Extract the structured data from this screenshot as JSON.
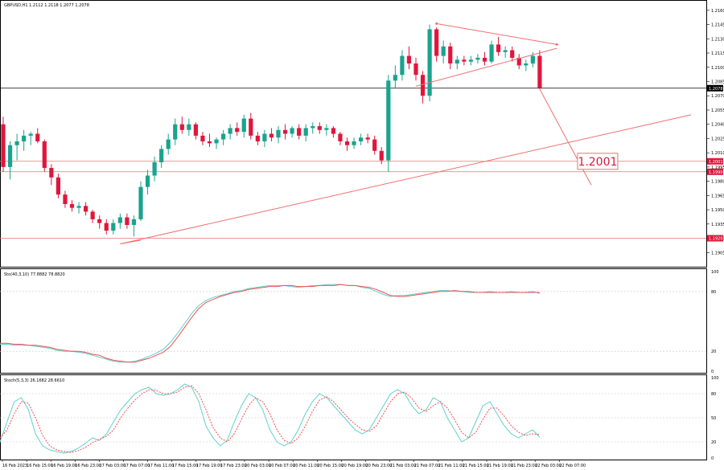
{
  "header": {
    "symbol_line": "GBPUSD,H1  1.2112 1.2118 1.2077 1.2078",
    "stoch1_line": "Sto(40,3,10) 77.8882 78.8820",
    "stoch2_line": "Stoch(5,3,3) 26.1682 28.6610"
  },
  "colors": {
    "bull": "#1aa38e",
    "bear": "#e0163c",
    "line_red": "#f07070",
    "stoch_main": "#60d0d0",
    "stoch_signal": "#f05050",
    "grid": "#c8c8c8",
    "border": "#000000"
  },
  "annotation": {
    "target_label": "1.2001"
  },
  "price_tags": {
    "current": "1.2078",
    "level_upper": "1.2001",
    "level_lower": "1.1990",
    "level_bottom": "1.1920"
  },
  "chart_data": [
    {
      "type": "candlestick",
      "title": "GBPUSD,H1",
      "ylim": [
        1.189,
        1.217
      ],
      "y_ticks": [
        "1.2160",
        "1.2145",
        "1.2130",
        "1.2115",
        "1.2100",
        "1.2085",
        "1.2070",
        "1.2055",
        "1.2040",
        "1.2025",
        "1.2010",
        "1.1995",
        "1.1980",
        "1.1965",
        "1.1950",
        "1.1935",
        "1.1920",
        "1.1905"
      ],
      "x_ticks": [
        "16 Feb 2023",
        "16 Feb 15:00",
        "16 Feb 19:00",
        "16 Feb 23:00",
        "17 Feb 03:00",
        "17 Feb 07:00",
        "17 Feb 11:00",
        "17 Feb 15:00",
        "17 Feb 19:00",
        "17 Feb 23:00",
        "20 Feb 03:00",
        "20 Feb 07:00",
        "20 Feb 11:00",
        "20 Feb 15:00",
        "20 Feb 19:00",
        "20 Feb 23:00",
        "21 Feb 03:00",
        "21 Feb 07:00",
        "21 Feb 11:00",
        "21 Feb 15:00",
        "21 Feb 19:00",
        "21 Feb 23:00",
        "22 Feb 03:00",
        "22 Feb 07:00"
      ],
      "candles": [
        [
          1.204,
          1.2048,
          1.199,
          1.1995
        ],
        [
          1.1995,
          1.2022,
          1.1982,
          1.2018
        ],
        [
          1.2018,
          1.203,
          1.2002,
          1.2022
        ],
        [
          1.2022,
          1.2034,
          1.2012,
          1.2028
        ],
        [
          1.2028,
          1.2032,
          1.2018,
          1.203
        ],
        [
          1.203,
          1.2036,
          1.202,
          1.2022
        ],
        [
          1.2022,
          1.2024,
          1.199,
          1.1994
        ],
        [
          1.1994,
          1.1998,
          1.1976,
          1.1984
        ],
        [
          1.1984,
          1.1988,
          1.1962,
          1.1966
        ],
        [
          1.1966,
          1.197,
          1.1952,
          1.1956
        ],
        [
          1.1956,
          1.196,
          1.1948,
          1.1952
        ],
        [
          1.1952,
          1.1958,
          1.1946,
          1.1954
        ],
        [
          1.1954,
          1.1958,
          1.1944,
          1.1948
        ],
        [
          1.1948,
          1.195,
          1.1936,
          1.194
        ],
        [
          1.194,
          1.1944,
          1.193,
          1.1936
        ],
        [
          1.1936,
          1.194,
          1.1924,
          1.1928
        ],
        [
          1.1928,
          1.194,
          1.1924,
          1.1936
        ],
        [
          1.1936,
          1.1946,
          1.193,
          1.1942
        ],
        [
          1.1942,
          1.1946,
          1.193,
          1.1934
        ],
        [
          1.1934,
          1.1944,
          1.1922,
          1.194
        ],
        [
          1.194,
          1.198,
          1.1938,
          1.1974
        ],
        [
          1.1974,
          1.1992,
          1.1966,
          1.1986
        ],
        [
          1.1986,
          1.2006,
          1.198,
          1.2
        ],
        [
          1.2,
          1.2018,
          1.1994,
          1.2014
        ],
        [
          1.2014,
          1.203,
          1.2008,
          1.2024
        ],
        [
          1.2024,
          1.2046,
          1.2018,
          1.204
        ],
        [
          1.204,
          1.2048,
          1.203,
          1.2034
        ],
        [
          1.2034,
          1.2046,
          1.2028,
          1.204
        ],
        [
          1.204,
          1.2042,
          1.2024,
          1.2028
        ],
        [
          1.2028,
          1.2032,
          1.2018,
          1.2022
        ],
        [
          1.2022,
          1.203,
          1.2016,
          1.202
        ],
        [
          1.202,
          1.2026,
          1.2014,
          1.2024
        ],
        [
          1.2024,
          1.2034,
          1.2018,
          1.203
        ],
        [
          1.203,
          1.204,
          1.2024,
          1.2036
        ],
        [
          1.2036,
          1.2042,
          1.2028,
          1.2032
        ],
        [
          1.2032,
          1.205,
          1.2026,
          1.2046
        ],
        [
          1.2046,
          1.2052,
          1.2024,
          1.2028
        ],
        [
          1.2028,
          1.2032,
          1.2018,
          1.2022
        ],
        [
          1.2022,
          1.2034,
          1.2016,
          1.203
        ],
        [
          1.203,
          1.2036,
          1.2022,
          1.2026
        ],
        [
          1.2026,
          1.2038,
          1.202,
          1.2034
        ],
        [
          1.2034,
          1.204,
          1.2024,
          1.203
        ],
        [
          1.203,
          1.2038,
          1.2026,
          1.2036
        ],
        [
          1.2036,
          1.204,
          1.2024,
          1.2028
        ],
        [
          1.2028,
          1.204,
          1.2022,
          1.2036
        ],
        [
          1.2036,
          1.2042,
          1.203,
          1.2038
        ],
        [
          1.2038,
          1.2042,
          1.203,
          1.2034
        ],
        [
          1.2034,
          1.204,
          1.2028,
          1.2036
        ],
        [
          1.2036,
          1.2038,
          1.2026,
          1.203
        ],
        [
          1.203,
          1.2032,
          1.2018,
          1.2022
        ],
        [
          1.2022,
          1.2026,
          1.2012,
          1.2018
        ],
        [
          1.2018,
          1.2026,
          1.2014,
          1.2022
        ],
        [
          1.2022,
          1.203,
          1.2018,
          1.2026
        ],
        [
          1.2026,
          1.203,
          1.202,
          1.2024
        ],
        [
          1.2024,
          1.2028,
          1.2008,
          1.2012
        ],
        [
          1.2012,
          1.2016,
          1.1998,
          1.2002
        ],
        [
          1.2002,
          1.2092,
          1.199,
          1.2086
        ],
        [
          1.2086,
          1.2102,
          1.2078,
          1.2092
        ],
        [
          1.2092,
          1.2118,
          1.2086,
          1.2112
        ],
        [
          1.2112,
          1.2122,
          1.2098,
          1.2104
        ],
        [
          1.2104,
          1.211,
          1.2086,
          1.2092
        ],
        [
          1.2092,
          1.2096,
          1.2062,
          1.207
        ],
        [
          1.207,
          1.2145,
          1.2064,
          1.214
        ],
        [
          1.214,
          1.2142,
          1.2106,
          1.2112
        ],
        [
          1.2112,
          1.2128,
          1.2104,
          1.2122
        ],
        [
          1.2122,
          1.2126,
          1.2098,
          1.2104
        ],
        [
          1.2104,
          1.2112,
          1.2098,
          1.2108
        ],
        [
          1.2108,
          1.2112,
          1.2102,
          1.2106
        ],
        [
          1.2106,
          1.2112,
          1.2102,
          1.2108
        ],
        [
          1.2108,
          1.2114,
          1.2104,
          1.211
        ],
        [
          1.211,
          1.2116,
          1.2102,
          1.2106
        ],
        [
          1.2106,
          1.2128,
          1.2104,
          1.2124
        ],
        [
          1.2124,
          1.2132,
          1.2112,
          1.2116
        ],
        [
          1.2116,
          1.2122,
          1.211,
          1.2118
        ],
        [
          1.2118,
          1.2122,
          1.2106,
          1.211
        ],
        [
          1.211,
          1.2114,
          1.2098,
          1.2102
        ],
        [
          1.2102,
          1.2108,
          1.2096,
          1.2104
        ],
        [
          1.2104,
          1.2116,
          1.21,
          1.2112
        ],
        [
          1.2112,
          1.2118,
          1.2077,
          1.2078
        ]
      ],
      "lines": [
        {
          "name": "current_price",
          "y": 1.2078,
          "color": "#000000"
        },
        {
          "name": "level_upper",
          "y": 1.2001,
          "color": "#f07070"
        },
        {
          "name": "level_lower",
          "y": 1.199,
          "color": "#f07070"
        },
        {
          "name": "level_bottom",
          "y": 1.192,
          "color": "#f07070"
        }
      ]
    },
    {
      "type": "line",
      "title": "Sto(40,3,10)",
      "ylim": [
        0,
        100
      ],
      "y_ticks": [
        "100",
        "80",
        "20",
        "0"
      ],
      "series": [
        {
          "values": [
            27,
            27,
            26,
            26,
            26,
            25,
            24,
            23,
            21,
            20,
            20,
            19,
            18,
            16,
            14,
            12,
            10,
            9,
            9,
            10,
            12,
            15,
            18,
            22,
            29,
            38,
            48,
            58,
            66,
            71,
            74,
            76,
            78,
            80,
            81,
            83,
            84,
            85,
            86,
            86,
            86,
            85,
            84,
            85,
            86,
            86,
            87,
            87,
            87,
            86,
            86,
            84,
            83,
            80,
            77,
            75,
            76,
            76,
            77,
            78,
            79,
            80,
            81,
            81,
            80,
            80,
            79,
            79,
            79,
            80,
            79,
            79,
            80,
            79,
            79,
            80,
            78
          ]
        },
        {
          "values": [
            28,
            28,
            27,
            27,
            26,
            26,
            25,
            24,
            22,
            21,
            20,
            20,
            19,
            17,
            16,
            13,
            11,
            10,
            9,
            9,
            11,
            13,
            16,
            19,
            25,
            34,
            44,
            54,
            63,
            69,
            72,
            75,
            77,
            79,
            80,
            82,
            83,
            84,
            85,
            85,
            86,
            86,
            85,
            85,
            85,
            86,
            86,
            86,
            87,
            86,
            86,
            85,
            84,
            82,
            79,
            76,
            75,
            75,
            76,
            77,
            78,
            79,
            80,
            80,
            81,
            80,
            80,
            79,
            79,
            79,
            79,
            79,
            79,
            79,
            79,
            79,
            79
          ]
        }
      ]
    },
    {
      "type": "line",
      "title": "Stoch(5,3,3)",
      "ylim": [
        0,
        100
      ],
      "y_ticks": [
        "100",
        "80",
        "50",
        "20",
        "0"
      ],
      "series": [
        {
          "values": [
            20,
            45,
            70,
            75,
            60,
            30,
            15,
            10,
            8,
            6,
            8,
            12,
            18,
            25,
            22,
            30,
            45,
            60,
            70,
            80,
            85,
            88,
            80,
            78,
            80,
            85,
            92,
            88,
            70,
            40,
            25,
            15,
            22,
            45,
            65,
            80,
            75,
            60,
            35,
            20,
            15,
            20,
            35,
            55,
            70,
            80,
            75,
            65,
            55,
            45,
            35,
            30,
            35,
            50,
            65,
            80,
            85,
            80,
            65,
            55,
            60,
            75,
            70,
            50,
            35,
            20,
            25,
            45,
            65,
            70,
            55,
            40,
            30,
            25,
            30,
            35,
            26
          ]
        },
        {
          "values": [
            25,
            35,
            55,
            70,
            68,
            50,
            28,
            15,
            10,
            8,
            7,
            9,
            13,
            19,
            23,
            27,
            35,
            50,
            62,
            72,
            80,
            85,
            84,
            80,
            80,
            82,
            88,
            90,
            80,
            60,
            38,
            25,
            20,
            30,
            48,
            65,
            75,
            70,
            55,
            35,
            22,
            18,
            25,
            40,
            58,
            72,
            76,
            70,
            60,
            50,
            42,
            35,
            33,
            40,
            55,
            70,
            80,
            82,
            74,
            62,
            58,
            65,
            70,
            62,
            48,
            32,
            25,
            32,
            48,
            62,
            62,
            52,
            40,
            32,
            28,
            30,
            29
          ]
        }
      ]
    }
  ]
}
